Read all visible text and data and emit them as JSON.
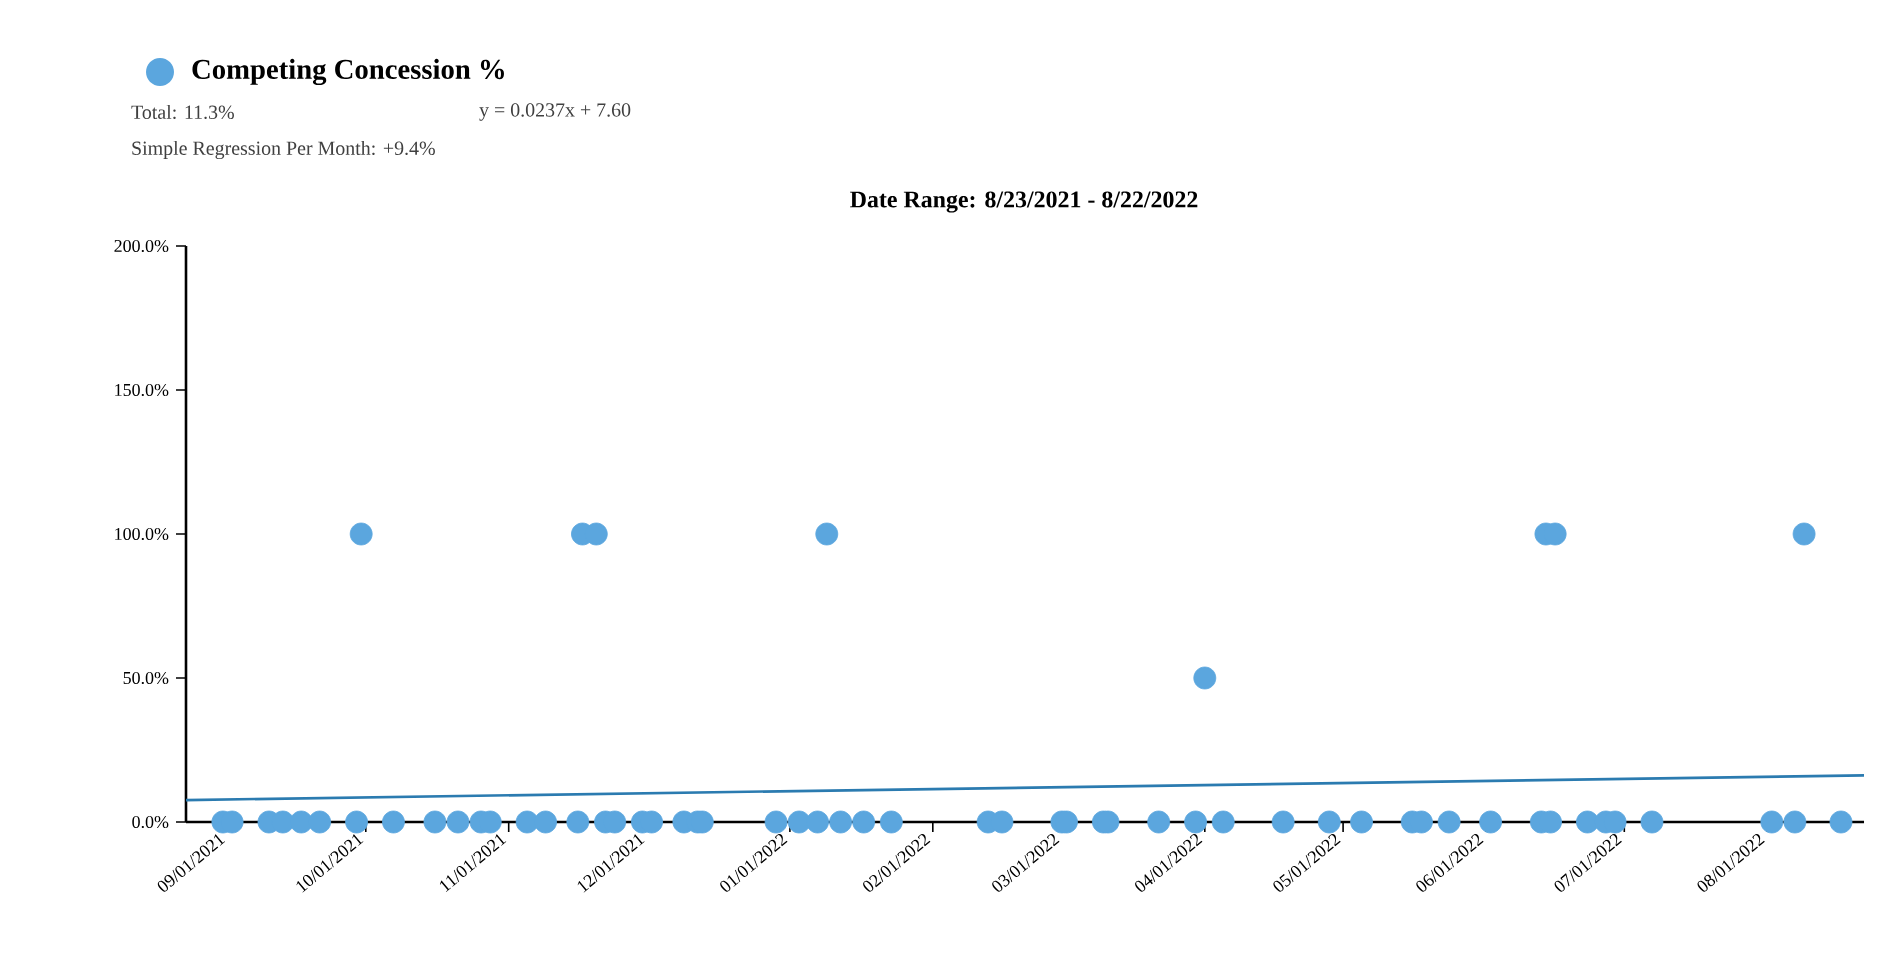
{
  "chart_data": {
    "type": "scatter",
    "title": "Date Range: 8/23/2021 - 8/22/2022",
    "annotations": [
      "Total: 11.3%",
      "y = 0.0237x + 7.60",
      "Simple Regression Per Month: +9.4%"
    ],
    "series": [
      {
        "name": "Competing Concession %",
        "marker": "circle",
        "color": "#5ba6de",
        "x": [
          "2021-08-31",
          "2021-09-02",
          "2021-09-10",
          "2021-09-13",
          "2021-09-17",
          "2021-09-21",
          "2021-09-29",
          "2021-09-30",
          "2021-10-07",
          "2021-10-16",
          "2021-10-21",
          "2021-10-26",
          "2021-10-28",
          "2021-11-05",
          "2021-11-09",
          "2021-11-16",
          "2021-11-17",
          "2021-11-20",
          "2021-11-22",
          "2021-11-24",
          "2021-11-30",
          "2021-12-02",
          "2021-12-09",
          "2021-12-12",
          "2021-12-13",
          "2021-12-29",
          "2022-01-03",
          "2022-01-07",
          "2022-01-09",
          "2022-01-12",
          "2022-01-17",
          "2022-01-23",
          "2022-02-13",
          "2022-02-16",
          "2022-03-01",
          "2022-03-02",
          "2022-03-10",
          "2022-03-11",
          "2022-03-22",
          "2022-03-30",
          "2022-04-01",
          "2022-04-05",
          "2022-04-18",
          "2022-04-28",
          "2022-05-05",
          "2022-05-16",
          "2022-05-18",
          "2022-05-24",
          "2022-06-02",
          "2022-06-13",
          "2022-06-14",
          "2022-06-15",
          "2022-06-16",
          "2022-06-23",
          "2022-06-27",
          "2022-06-29",
          "2022-07-07",
          "2022-08-02",
          "2022-08-07",
          "2022-08-09",
          "2022-08-17"
        ],
        "values": [
          0,
          0,
          0,
          0,
          0,
          0,
          0,
          100,
          0,
          0,
          0,
          0,
          0,
          0,
          0,
          0,
          100,
          100,
          0,
          0,
          0,
          0,
          0,
          0,
          0,
          0,
          0,
          0,
          100,
          0,
          0,
          0,
          0,
          0,
          0,
          0,
          0,
          0,
          0,
          0,
          50,
          0,
          0,
          0,
          0,
          0,
          0,
          0,
          0,
          0,
          100,
          0,
          100,
          0,
          0,
          0,
          0,
          0,
          0,
          100,
          0
        ]
      },
      {
        "type": "line",
        "marker": "none",
        "color": "#2b7bb0",
        "line_style": "solid",
        "x": [
          "2021-08-23",
          "2022-08-22"
        ],
        "values": [
          7.6,
          16.2
        ]
      }
    ],
    "legend": "top left",
    "xlim": [
      "2021-08-23",
      "2022-08-22"
    ],
    "xticks": [
      {
        "value": "2021-09-01",
        "label": "09/01/2021"
      },
      {
        "value": "2021-10-01",
        "label": "10/01/2021"
      },
      {
        "value": "2021-11-01",
        "label": "11/01/2021"
      },
      {
        "value": "2021-12-01",
        "label": "12/01/2021"
      },
      {
        "value": "2022-01-01",
        "label": "01/01/2022"
      },
      {
        "value": "2022-02-01",
        "label": "02/01/2022"
      },
      {
        "value": "2022-03-01",
        "label": "03/01/2022"
      },
      {
        "value": "2022-04-01",
        "label": "04/01/2022"
      },
      {
        "value": "2022-05-01",
        "label": "05/01/2022"
      },
      {
        "value": "2022-06-01",
        "label": "06/01/2022"
      },
      {
        "value": "2022-07-01",
        "label": "07/01/2022"
      },
      {
        "value": "2022-08-01",
        "label": "08/01/2022"
      }
    ],
    "ylim": [
      0,
      200
    ],
    "yticks": [
      {
        "value": 0,
        "label": "0.0%"
      },
      {
        "value": 50,
        "label": "50.0%"
      },
      {
        "value": 100,
        "label": "100.0%"
      },
      {
        "value": 150,
        "label": "150.0%"
      },
      {
        "value": 200,
        "label": "200.0%"
      }
    ]
  }
}
